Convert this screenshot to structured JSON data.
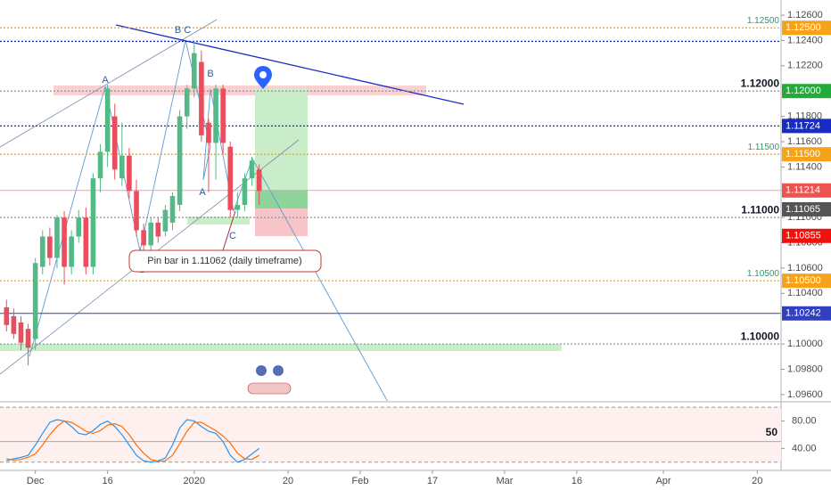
{
  "chart_data": [
    {
      "type": "candlestick",
      "up_color": "#53b987",
      "down_color": "#eb4d5c",
      "open": [
        1.1029,
        1.1022,
        1.1017,
        1.1012,
        1.1004,
        1.1061,
        1.1085,
        1.1068,
        1.11,
        1.1061,
        1.1085,
        1.11,
        1.1061,
        1.1131,
        1.1152,
        1.118,
        1.1131,
        1.1149,
        1.1121,
        1.109,
        1.1078,
        1.1096,
        1.1089,
        1.1096,
        1.111,
        1.118,
        1.1202,
        1.1223,
        1.1175,
        1.1159,
        1.1202,
        1.1156,
        1.1106,
        1.111,
        1.1131,
        1.1138
      ],
      "high": [
        1.1035,
        1.1028,
        1.1022,
        1.1016,
        1.1068,
        1.109,
        1.1092,
        1.1102,
        1.1105,
        1.109,
        1.1106,
        1.1108,
        1.1135,
        1.1158,
        1.1205,
        1.119,
        1.1175,
        1.1155,
        1.113,
        1.1095,
        1.11,
        1.11,
        1.111,
        1.112,
        1.1185,
        1.1205,
        1.124,
        1.1232,
        1.1178,
        1.1205,
        1.1205,
        1.116,
        1.112,
        1.1135,
        1.1148,
        1.1142
      ],
      "low": [
        1.101,
        1.1004,
        1.0995,
        1.0983,
        1.0995,
        1.1055,
        1.1062,
        1.106,
        1.1047,
        1.1055,
        1.108,
        1.1055,
        1.1055,
        1.112,
        1.114,
        1.113,
        1.1125,
        1.1115,
        1.1085,
        1.1071,
        1.107,
        1.108,
        1.1085,
        1.109,
        1.1105,
        1.117,
        1.1195,
        1.116,
        1.112,
        1.113,
        1.115,
        1.11,
        1.11,
        1.1105,
        1.1125,
        1.111
      ],
      "close": [
        1.1015,
        1.1008,
        1.1001,
        1.0997,
        1.1064,
        1.1085,
        1.1068,
        1.11,
        1.1061,
        1.1085,
        1.11,
        1.1061,
        1.1131,
        1.1152,
        1.1202,
        1.1138,
        1.1149,
        1.1121,
        1.109,
        1.1078,
        1.1096,
        1.1085,
        1.1106,
        1.1117,
        1.118,
        1.1202,
        1.123,
        1.1165,
        1.1159,
        1.1202,
        1.1159,
        1.1106,
        1.111,
        1.1131,
        1.1145,
        1.1121
      ],
      "xlim": [
        -0.9,
        107.3
      ],
      "xticks": [
        {
          "value": 4,
          "label": "Dec"
        },
        {
          "value": 14,
          "label": "16"
        },
        {
          "value": 26,
          "label": "2020"
        },
        {
          "value": 39,
          "label": "20"
        },
        {
          "value": 49,
          "label": "Feb"
        },
        {
          "value": 59,
          "label": "17"
        },
        {
          "value": 69,
          "label": "Mar"
        },
        {
          "value": 79,
          "label": "16"
        },
        {
          "value": 91,
          "label": "Apr"
        },
        {
          "value": 104,
          "label": "20"
        }
      ],
      "ylim": [
        1.0955,
        1.1272
      ],
      "yticks": [
        {
          "value": 1.126,
          "label": "1.12600"
        },
        {
          "value": 1.124,
          "label": "1.12400"
        },
        {
          "value": 1.122,
          "label": "1.12200"
        },
        {
          "value": 1.118,
          "label": "1.11800"
        },
        {
          "value": 1.116,
          "label": "1.11600"
        },
        {
          "value": 1.114,
          "label": "1.11400"
        },
        {
          "value": 1.11,
          "label": "1.11000"
        },
        {
          "value": 1.108,
          "label": "1.10800"
        },
        {
          "value": 1.106,
          "label": "1.10600"
        },
        {
          "value": 1.104,
          "label": "1.10400"
        },
        {
          "value": 1.1,
          "label": "1.10000"
        },
        {
          "value": 1.098,
          "label": "1.09800"
        },
        {
          "value": 1.096,
          "label": "1.09600"
        }
      ],
      "levels": [
        {
          "value": 1.125,
          "style": "dotted",
          "color": "#f7a21b",
          "label": "1.12500",
          "caption": "1.12500",
          "caption_style": "small"
        },
        {
          "value": 1.12393,
          "style": "dotted",
          "color": "#1a2bc4"
        },
        {
          "value": 1.12,
          "style": "dotted",
          "color": "#999999",
          "label": "1.12000",
          "label_color": "#22ab3a",
          "caption": "1.12000",
          "caption_style": "bold"
        },
        {
          "value": 1.11724,
          "style": "dotted",
          "color": "#1a2bc4",
          "label": "1.11724"
        },
        {
          "value": 1.115,
          "style": "dotted",
          "color": "#f7a21b",
          "label": "1.11500",
          "caption": "1.11500",
          "caption_style": "small"
        },
        {
          "value": 1.11214,
          "style": "solid",
          "color": "#f2a0a8",
          "label": "1.11214",
          "label_color": "#ef5350"
        },
        {
          "value": 1.11,
          "style": "dotted",
          "color": "#999999",
          "caption": "1.11000",
          "caption_style": "bold"
        },
        {
          "value": 1.11065,
          "style": "none",
          "color": "#555555",
          "label": "1.11065"
        },
        {
          "value": 1.10855,
          "style": "none",
          "color": "#f0110f",
          "label": "1.10855"
        },
        {
          "value": 1.105,
          "style": "dotted",
          "color": "#f7a21b",
          "label": "1.10500",
          "caption": "1.10500",
          "caption_style": "small"
        },
        {
          "value": 1.10242,
          "style": "solid",
          "color": "#3040c0",
          "label": "1.10242"
        },
        {
          "value": 1.1,
          "style": "dotted",
          "color": "#999999",
          "caption": "1.10000",
          "caption_style": "bold"
        }
      ],
      "annotations": [
        "A",
        "B C",
        "B",
        "A",
        "C",
        "B",
        "Pin bar in 1.11062  (daily timeframe)"
      ]
    },
    {
      "type": "line",
      "series": [
        {
          "color": "#2196f3",
          "values": [
            22,
            25,
            27,
            30,
            45,
            62,
            78,
            82,
            80,
            72,
            62,
            60,
            66,
            75,
            80,
            72,
            60,
            45,
            30,
            22,
            20,
            22,
            26,
            45,
            70,
            82,
            80,
            72,
            65,
            62,
            50,
            30,
            20,
            24,
            32,
            40
          ]
        },
        {
          "color": "#ff6d00",
          "values": [
            25,
            23,
            24,
            27,
            32,
            45,
            60,
            72,
            80,
            78,
            72,
            65,
            62,
            66,
            74,
            76,
            72,
            60,
            45,
            33,
            24,
            21,
            22,
            30,
            47,
            65,
            78,
            78,
            72,
            66,
            58,
            48,
            33,
            25,
            24,
            30
          ]
        }
      ],
      "ylim": [
        9.3,
        106.7
      ],
      "yticks": [
        {
          "value": 80,
          "label": "80.00"
        },
        {
          "value": 40,
          "label": "40.00"
        }
      ],
      "band": [
        20,
        100
      ],
      "midline": {
        "value": 50,
        "label": "50"
      }
    }
  ]
}
